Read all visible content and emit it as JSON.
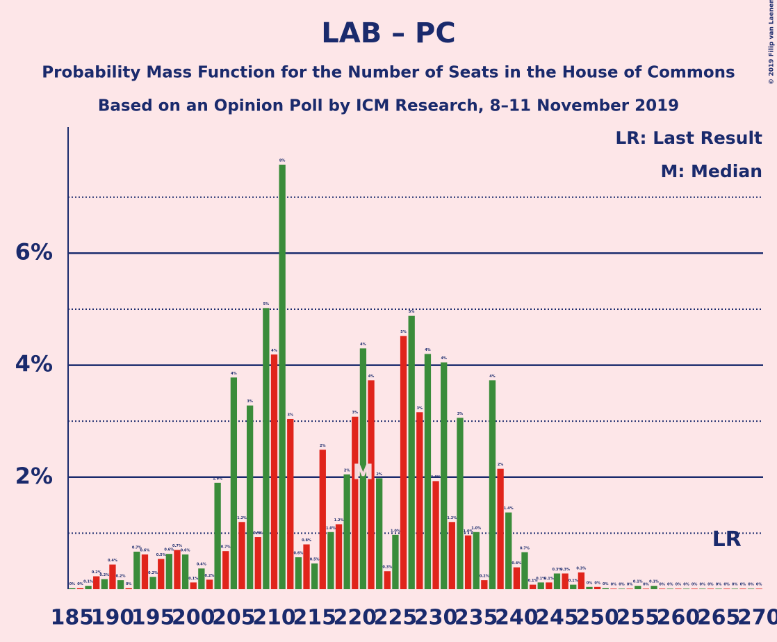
{
  "chart_data": {
    "type": "bar",
    "title": "LAB – PC",
    "subtitle": "Probability Mass Function for the Number of Seats in the House of Commons",
    "subtitle2": "Based on an Opinion Poll by ICM Research, 8–11 November 2019",
    "copyright": "© 2019 Filip van Laenen",
    "legend": [
      "LR: Last Result",
      "M: Median"
    ],
    "median": 221,
    "median_label": "M",
    "last_result": 266,
    "last_result_label": "LR",
    "colors": [
      "#3a8c3a",
      "#e0241b"
    ],
    "x": [
      185,
      186,
      187,
      188,
      189,
      190,
      191,
      192,
      193,
      194,
      195,
      196,
      197,
      198,
      199,
      200,
      201,
      202,
      203,
      204,
      205,
      206,
      207,
      208,
      209,
      210,
      211,
      212,
      213,
      214,
      215,
      216,
      217,
      218,
      219,
      220,
      221,
      222,
      223,
      224,
      225,
      226,
      227,
      228,
      229,
      230,
      231,
      232,
      233,
      234,
      235,
      236,
      237,
      238,
      239,
      240,
      241,
      242,
      243,
      244,
      245,
      246,
      247,
      248,
      249,
      250,
      251,
      252,
      253,
      254,
      255,
      256,
      257,
      258,
      259,
      260,
      261,
      262,
      263,
      264,
      265,
      266,
      267,
      268,
      269,
      270
    ],
    "values": [
      0.02,
      0.02,
      0.06,
      0.23,
      0.18,
      0.44,
      0.16,
      0.02,
      0.67,
      0.62,
      0.22,
      0.54,
      0.63,
      0.7,
      0.62,
      0.12,
      0.37,
      0.17,
      1.9,
      0.68,
      3.78,
      1.2,
      3.28,
      0.93,
      5.02,
      4.19,
      7.58,
      3.04,
      0.57,
      0.8,
      0.46,
      2.49,
      1.02,
      1.16,
      2.05,
      3.08,
      4.3,
      3.73,
      1.98,
      0.32,
      0.97,
      4.52,
      4.88,
      3.16,
      4.2,
      1.93,
      4.05,
      1.2,
      3.06,
      0.96,
      1.02,
      0.16,
      3.73,
      2.15,
      1.37,
      0.39,
      0.66,
      0.08,
      0.12,
      0.12,
      0.28,
      0.28,
      0.08,
      0.3,
      0.04,
      0.04,
      0.02,
      0.01,
      0.01,
      0.01,
      0.06,
      0.01,
      0.06,
      0.01,
      0.01,
      0.01,
      0.01,
      0.01,
      0.01,
      0.01,
      0.01,
      0.01,
      0.01,
      0.01,
      0.01,
      0.01
    ],
    "value_labels": [
      "0%",
      "0%",
      "0.1%",
      "0.2%",
      "0.2%",
      "0.4%",
      "0.2%",
      "0%",
      "0.7%",
      "0.6%",
      "0.2%",
      "0.5%",
      "0.6%",
      "0.7%",
      "0.6%",
      "0.1%",
      "0.4%",
      "0.2%",
      "1.9%",
      "0.7%",
      "4%",
      "1.2%",
      "3%",
      "0.9%",
      "5%",
      "4%",
      "8%",
      "3%",
      "0.6%",
      "0.8%",
      "0.5%",
      "2%",
      "1.0%",
      "1.2%",
      "2%",
      "3%",
      "4%",
      "4%",
      "2%",
      "0.3%",
      "1.0%",
      "5%",
      "5%",
      "3%",
      "4%",
      "1.9%",
      "4%",
      "1.2%",
      "3%",
      "1.0%",
      "1.0%",
      "0.2%",
      "4%",
      "2%",
      "1.4%",
      "0.4%",
      "0.7%",
      "0.1%",
      "0.1%",
      "0.1%",
      "0.3%",
      "0.3%",
      "0.1%",
      "0.3%",
      "0%",
      "0%",
      "0%",
      "0%",
      "0%",
      "0%",
      "0.1%",
      "0%",
      "0.1%",
      "0%",
      "0%",
      "0%",
      "0%",
      "0%",
      "0%",
      "0%",
      "0%",
      "0%",
      "0%",
      "0%",
      "0%",
      "0%"
    ],
    "xlim": [
      184.5,
      270.5
    ],
    "xticks": [
      185,
      190,
      195,
      200,
      205,
      210,
      215,
      220,
      225,
      230,
      235,
      240,
      245,
      250,
      255,
      260,
      265,
      270
    ],
    "ylim": [
      0,
      8.25
    ],
    "yticks": [
      {
        "value": 2,
        "label": "2%"
      },
      {
        "value": 4,
        "label": "4%"
      },
      {
        "value": 6,
        "label": "6%"
      }
    ],
    "minor_yticks": [
      1,
      3,
      5,
      7
    ],
    "grid": true
  }
}
